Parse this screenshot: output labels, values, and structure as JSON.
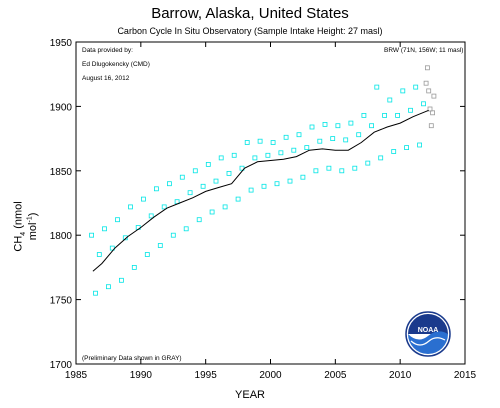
{
  "header": {
    "title": "Barrow, Alaska, United States",
    "subtitle": "Carbon Cycle In Situ Observatory (Sample Intake Height: 27 masl)"
  },
  "notes": {
    "provider_line1": "Data provided by:",
    "provider_line2": "Ed Dlugokencky (CMD)",
    "date": "August 16, 2012",
    "station": "BRW (71N, 156W; 11 masl)",
    "preliminary": "(Preliminary Data shown in GRAY)"
  },
  "logo": {
    "text": "NOAA"
  },
  "colors": {
    "measurements": "#00e5e5",
    "preliminary": "#9a9a9a",
    "trend": "#000000"
  },
  "chart_data": {
    "type": "scatter",
    "xlabel": "YEAR",
    "ylabel": "CH4 (nmol mol-1)",
    "ylabel_parts": [
      "CH",
      "4",
      " (nmol mol",
      "-1",
      ")"
    ],
    "xlim": [
      1985,
      2015
    ],
    "ylim": [
      1700,
      1950
    ],
    "xticks": [
      1985,
      1990,
      1995,
      2000,
      2005,
      2010,
      2015
    ],
    "yticks": [
      1700,
      1750,
      1800,
      1850,
      1900,
      1950
    ],
    "grid": false,
    "series": [
      {
        "marker": "open-square",
        "color": "#00e5e5",
        "x": [
          1986.2,
          1986.5,
          1986.8,
          1987.2,
          1987.5,
          1987.8,
          1988.2,
          1988.5,
          1988.8,
          1989.2,
          1989.5,
          1989.8,
          1990.2,
          1990.5,
          1990.8,
          1991.2,
          1991.5,
          1991.8,
          1992.2,
          1992.5,
          1992.8,
          1993.2,
          1993.5,
          1993.8,
          1994.2,
          1994.5,
          1994.8,
          1995.2,
          1995.5,
          1995.8,
          1996.2,
          1996.5,
          1996.8,
          1997.2,
          1997.5,
          1997.8,
          1998.2,
          1998.5,
          1998.8,
          1999.2,
          1999.5,
          1999.8,
          2000.2,
          2000.5,
          2000.8,
          2001.2,
          2001.5,
          2001.8,
          2002.2,
          2002.5,
          2002.8,
          2003.2,
          2003.5,
          2003.8,
          2004.2,
          2004.5,
          2004.8,
          2005.2,
          2005.5,
          2005.8,
          2006.2,
          2006.5,
          2006.8,
          2007.2,
          2007.5,
          2007.8,
          2008.2,
          2008.5,
          2008.8,
          2009.2,
          2009.5,
          2009.8,
          2010.2,
          2010.5,
          2010.8,
          2011.2,
          2011.5,
          2011.8
        ],
        "y": [
          1800,
          1755,
          1785,
          1805,
          1760,
          1790,
          1812,
          1765,
          1798,
          1822,
          1775,
          1806,
          1828,
          1785,
          1815,
          1836,
          1792,
          1822,
          1840,
          1800,
          1826,
          1845,
          1805,
          1833,
          1850,
          1812,
          1838,
          1855,
          1818,
          1842,
          1860,
          1822,
          1848,
          1862,
          1828,
          1852,
          1872,
          1835,
          1860,
          1873,
          1838,
          1862,
          1872,
          1840,
          1864,
          1876,
          1842,
          1866,
          1878,
          1845,
          1868,
          1884,
          1850,
          1873,
          1886,
          1852,
          1875,
          1885,
          1850,
          1874,
          1887,
          1852,
          1878,
          1893,
          1856,
          1885,
          1915,
          1860,
          1893,
          1905,
          1865,
          1893,
          1912,
          1868,
          1897,
          1915,
          1870,
          1902
        ]
      },
      {
        "name": "Preliminary",
        "marker": "open-square",
        "color": "#9a9a9a",
        "x": [
          2012.0,
          2012.1,
          2012.2,
          2012.3,
          2012.4,
          2012.5,
          2012.6
        ],
        "y": [
          1918,
          1930,
          1912,
          1898,
          1885,
          1895,
          1908
        ]
      },
      {
        "name": "Trend",
        "type": "line",
        "color": "#000000",
        "x": [
          1986.3,
          1987,
          1988,
          1989,
          1990,
          1991,
          1992,
          1993,
          1994,
          1995,
          1996,
          1997,
          1998,
          1999,
          2000,
          2001,
          2002,
          2003,
          2004,
          2005,
          2006,
          2007,
          2008,
          2009,
          2010,
          2011,
          2012.2
        ],
        "y": [
          1772,
          1778,
          1790,
          1799,
          1806,
          1814,
          1821,
          1825,
          1829,
          1834,
          1837,
          1840,
          1852,
          1857,
          1858,
          1859,
          1861,
          1866,
          1867,
          1866,
          1866,
          1872,
          1880,
          1884,
          1887,
          1892,
          1897
        ]
      }
    ]
  }
}
